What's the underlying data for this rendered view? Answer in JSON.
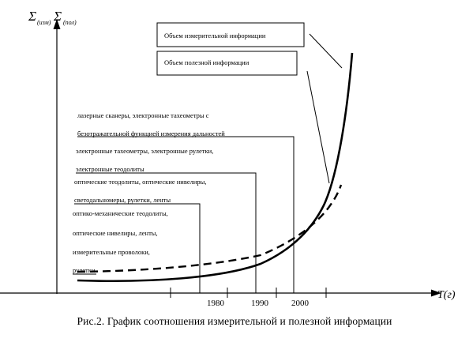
{
  "chart_data": {
    "type": "line",
    "ylabel_parts": [
      "Σ",
      "(изм)",
      "Σ",
      "(пол)"
    ],
    "xlabel": "T(г)",
    "x_ticks": [
      "1980",
      "1990",
      "2000"
    ],
    "series": [
      {
        "name": "Объем измерительной информации",
        "style": "solid"
      },
      {
        "name": "Объем полезной информации",
        "style": "dashed"
      }
    ],
    "annotations": [
      "лазерные сканеры, электронные тахеометры с",
      "безотражательной функцией измерения дальностей",
      "электронные тахеометры, электронные рулетки,",
      "электронные теодолиты",
      "оптические теодолиты, оптические нивелиры,",
      "светодальномеры, рулетки, ленты",
      "оптико-механические теодолиты,",
      "оптические нивелиры, ленты,",
      "измерительные проволоки,",
      "рулетки"
    ]
  },
  "caption": "Рис.2. График соотношения измерительной и полезной информации"
}
